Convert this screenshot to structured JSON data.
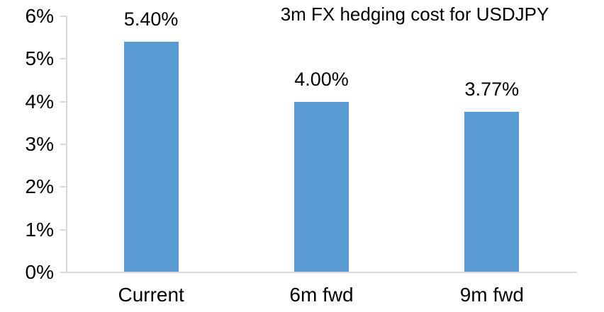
{
  "chart_data": {
    "type": "bar",
    "title": "3m FX hedging cost for USDJPY",
    "categories": [
      "Current",
      "6m fwd",
      "9m fwd"
    ],
    "values": [
      5.4,
      4.0,
      3.77
    ],
    "value_labels": [
      "5.40%",
      "4.00%",
      "3.77%"
    ],
    "xlabel": "",
    "ylabel": "",
    "ylim": [
      0,
      6
    ],
    "y_ticks": [
      {
        "value": 0,
        "label": "0%"
      },
      {
        "value": 1,
        "label": "1%"
      },
      {
        "value": 2,
        "label": "2%"
      },
      {
        "value": 3,
        "label": "3%"
      },
      {
        "value": 4,
        "label": "4%"
      },
      {
        "value": 5,
        "label": "5%"
      },
      {
        "value": 6,
        "label": "6%"
      }
    ],
    "grid": false,
    "legend": null,
    "colors": {
      "bar": "#5B9BD5",
      "axis": "#D9D9D9",
      "text": "#000000",
      "background": "#FFFFFF"
    }
  }
}
